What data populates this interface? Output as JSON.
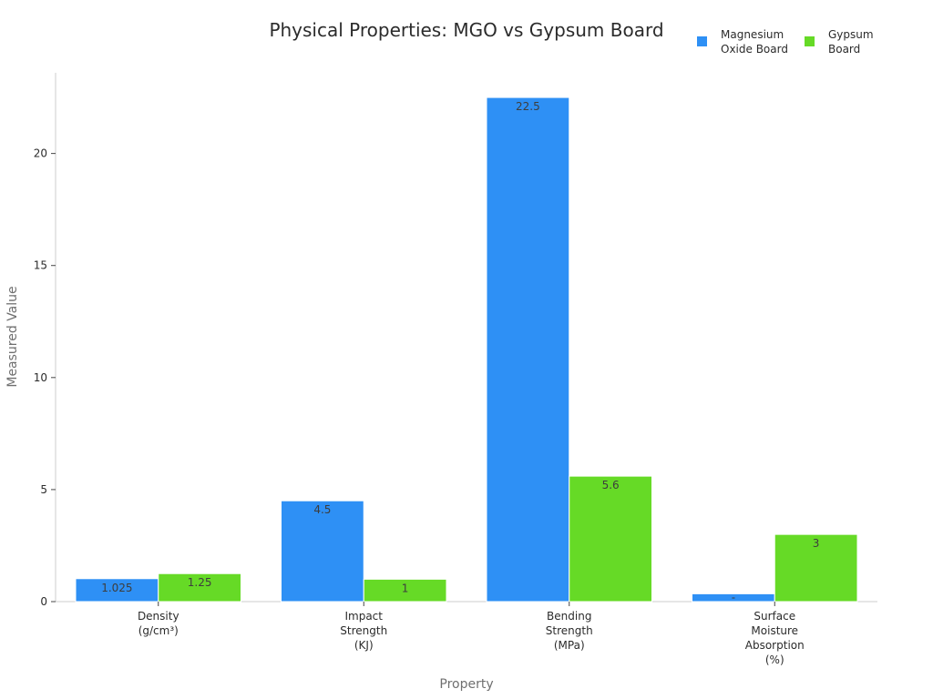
{
  "chart_data": {
    "type": "bar",
    "title": "Physical Properties: MGO vs Gypsum Board",
    "xlabel": "Property",
    "ylabel": "Measured Value",
    "categories": [
      [
        "Density",
        "(g/cm³)"
      ],
      [
        "Impact",
        "Strength",
        "(KJ)"
      ],
      [
        "Bending",
        "Strength",
        "(MPa)"
      ],
      [
        "Surface",
        "Moisture",
        "Absorption",
        "(%)"
      ]
    ],
    "series": [
      {
        "name": [
          "Magnesium",
          "Oxide Board"
        ],
        "color": "#2e90f5",
        "values": [
          1.025,
          4.5,
          22.5,
          0.35
        ],
        "labels": [
          "1.025",
          "4.5",
          "22.5",
          "-"
        ]
      },
      {
        "name": [
          "Gypsum",
          "Board"
        ],
        "color": "#66da26",
        "values": [
          1.25,
          1,
          5.6,
          3
        ],
        "labels": [
          "1.25",
          "1",
          "5.6",
          "3"
        ]
      }
    ],
    "ylim": [
      0,
      23.6
    ],
    "yticks": [
      0,
      5,
      10,
      15,
      20
    ],
    "grid": false,
    "legend_position": "top-right"
  }
}
